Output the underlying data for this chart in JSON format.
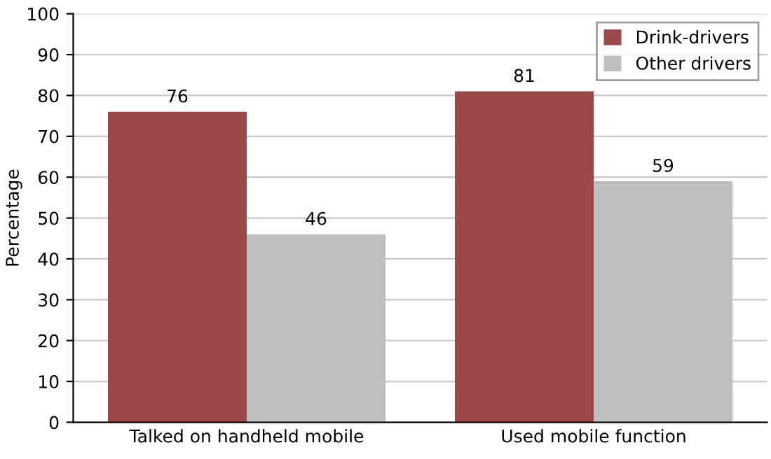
{
  "chart_data": {
    "type": "bar",
    "ylabel": "Percentage",
    "categories": [
      "Talked on handheld mobile",
      "Used mobile function"
    ],
    "series": [
      {
        "name": "Drink-drivers",
        "color": "#9c4849",
        "values": [
          76,
          81
        ]
      },
      {
        "name": "Other drivers",
        "color": "#bebfc1",
        "values": [
          46,
          59
        ]
      }
    ],
    "ylim": [
      0,
      100
    ],
    "yticks": [
      0,
      10,
      20,
      30,
      40,
      50,
      60,
      70,
      80,
      90,
      100
    ],
    "grid": "y",
    "legend": "top right",
    "data_labels": true
  }
}
